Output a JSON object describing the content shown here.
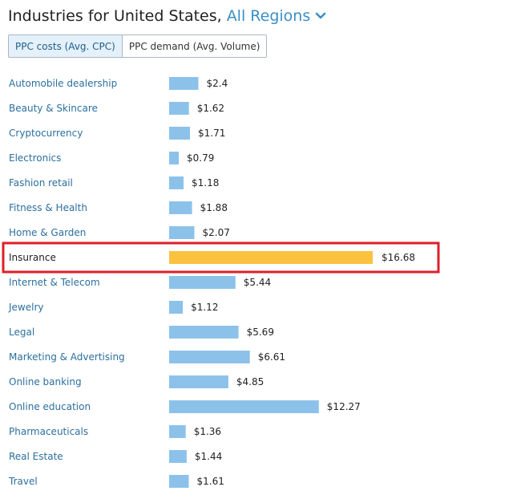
{
  "header": {
    "title": "Industries for United States,",
    "region": "All Regions"
  },
  "toggle": {
    "options": [
      "PPC costs (Avg. CPC)",
      "PPC demand (Avg. Volume)"
    ],
    "active": 0
  },
  "colors": {
    "bar": "#8cc2ea",
    "highlight_bar": "#fbc23f",
    "highlight_box": "#dd1f2a",
    "label": "#2b6f9e",
    "accent": "#3a8fc6"
  },
  "chart_data": {
    "type": "bar",
    "orientation": "horizontal",
    "categories": [
      "Automobile dealership",
      "Beauty & Skincare",
      "Cryptocurrency",
      "Electronics",
      "Fashion retail",
      "Fitness & Health",
      "Home & Garden",
      "Insurance",
      "Internet & Telecom",
      "Jewelry",
      "Legal",
      "Marketing & Advertising",
      "Online banking",
      "Online education",
      "Pharmaceuticals",
      "Real Estate",
      "Travel"
    ],
    "values": [
      2.4,
      1.62,
      1.71,
      0.79,
      1.18,
      1.88,
      2.07,
      16.68,
      5.44,
      1.12,
      5.69,
      6.61,
      4.85,
      12.27,
      1.36,
      1.44,
      1.61
    ],
    "value_labels": [
      "$2.4",
      "$1.62",
      "$1.71",
      "$0.79",
      "$1.18",
      "$1.88",
      "$2.07",
      "$16.68",
      "$5.44",
      "$1.12",
      "$5.69",
      "$6.61",
      "$4.85",
      "$12.27",
      "$1.36",
      "$1.44",
      "$1.61"
    ],
    "highlighted": "Insurance",
    "xlim": [
      0,
      16.68
    ]
  }
}
